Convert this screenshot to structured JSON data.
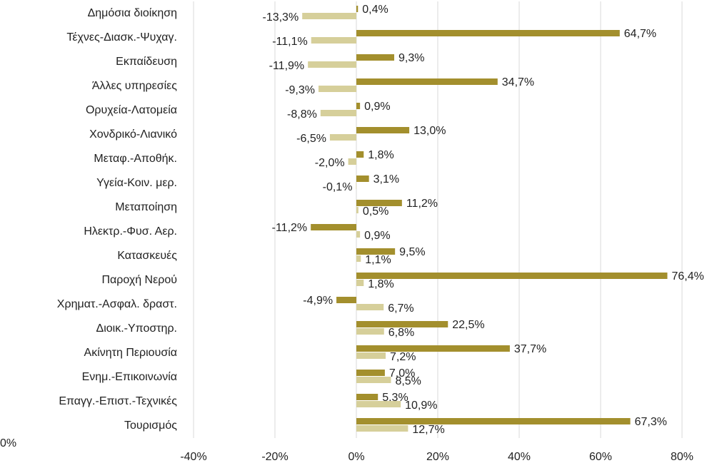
{
  "chart_data": {
    "type": "bar",
    "orientation": "horizontal",
    "categories": [
      "Δημόσια διοίκηση",
      "Τέχνες-Διασκ.-Ψυχαγ.",
      "Εκπαίδευση",
      "Άλλες υπηρεσίες",
      "Ορυχεία-Λατομεία",
      "Χονδρικό-Λιανικό",
      "Μεταφ.-Αποθήκ.",
      "Υγεία-Κοιν. μερ.",
      "Μεταποίηση",
      "Ηλεκτρ.-Φυσ. Αερ.",
      "Κατασκευές",
      "Παροχή Νερού",
      "Χρηματ.-Ασφαλ. δραστ.",
      "Διοικ.-Υποστηρ.",
      "Ακίνητη Περιουσία",
      "Ενημ.-Επικοινωνία",
      "Επαγγ.-Επιστ.-Τεχνικές",
      "Τουρισμός"
    ],
    "series": [
      {
        "color": "#a38f2d",
        "values": [
          0.4,
          64.7,
          9.3,
          34.7,
          0.9,
          13.0,
          1.8,
          3.1,
          11.2,
          -11.2,
          9.5,
          76.4,
          -4.9,
          22.5,
          37.7,
          7.0,
          5.3,
          67.3
        ],
        "value_labels": [
          "0,4%",
          "64,7%",
          "9,3%",
          "34,7%",
          "0,9%",
          "13,0%",
          "1,8%",
          "3,1%",
          "11,2%",
          "-11,2%",
          "9,5%",
          "76,4%",
          "-4,9%",
          "22,5%",
          "37,7%",
          "7,0%",
          "5,3%",
          "67,3%"
        ]
      },
      {
        "color": "#d6cf9a",
        "values": [
          -13.3,
          -11.1,
          -11.9,
          -9.3,
          -8.8,
          -6.5,
          -2.0,
          -0.1,
          0.5,
          0.9,
          1.1,
          1.8,
          6.7,
          6.8,
          7.2,
          8.5,
          10.9,
          12.7
        ],
        "value_labels": [
          "-13,3%",
          "-11,1%",
          "-11,9%",
          "-9,3%",
          "-8,8%",
          "-6,5%",
          "-2,0%",
          "-0,1%",
          "0,5%",
          "0,9%",
          "1,1%",
          "1,8%",
          "6,7%",
          "6,8%",
          "7,2%",
          "8,5%",
          "10,9%",
          "12,7%"
        ]
      }
    ],
    "xlim": [
      -40,
      80
    ],
    "xticks": [
      {
        "value": -40,
        "label": "-40%"
      },
      {
        "value": -20,
        "label": "-20%"
      },
      {
        "value": 0,
        "label": "0%"
      },
      {
        "value": 20,
        "label": "20%"
      },
      {
        "value": 40,
        "label": "40%"
      },
      {
        "value": 60,
        "label": "60%"
      },
      {
        "value": 80,
        "label": "80%"
      }
    ],
    "grid": true,
    "annotation": "0%"
  }
}
